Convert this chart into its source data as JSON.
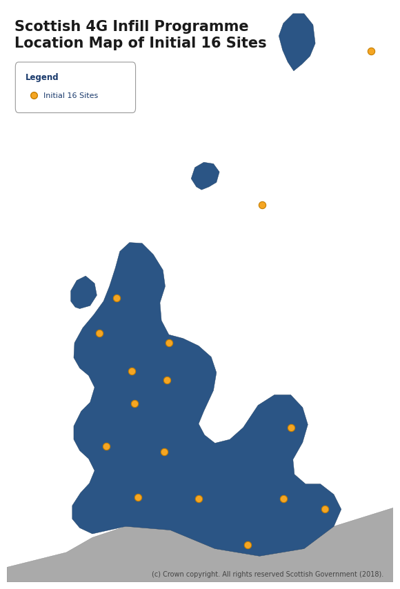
{
  "title_line1": "Scottish 4G Infill Programme",
  "title_line2": "Location Map of Initial 16 Sites",
  "title_fontsize": 15,
  "title_color": "#1a1a1a",
  "legend_title": "Legend",
  "legend_label": "Initial 16 Sites",
  "site_color": "#F5A623",
  "site_edgecolor": "#c47d00",
  "site_size": 55,
  "scotland_color": "#2B5585",
  "england_color": "#aaaaaa",
  "background_color": "#ffffff",
  "copyright_text": "(c) Crown copyright. All rights reserved Scottish Government (2018).",
  "copyright_fontsize": 7,
  "sites_bng": [
    [
      540000,
      1175000
    ],
    [
      393000,
      968000
    ],
    [
      198000,
      842000
    ],
    [
      174000,
      795000
    ],
    [
      218000,
      744000
    ],
    [
      222000,
      700000
    ],
    [
      265000,
      732000
    ],
    [
      262000,
      635000
    ],
    [
      184000,
      643000
    ],
    [
      308000,
      572000
    ],
    [
      226000,
      574000
    ],
    [
      422000,
      572000
    ],
    [
      478000,
      558000
    ],
    [
      374000,
      510000
    ],
    [
      268000,
      782000
    ],
    [
      432000,
      668000
    ]
  ],
  "xlim": [
    50000,
    570000
  ],
  "ylim": [
    460000,
    1235000
  ]
}
